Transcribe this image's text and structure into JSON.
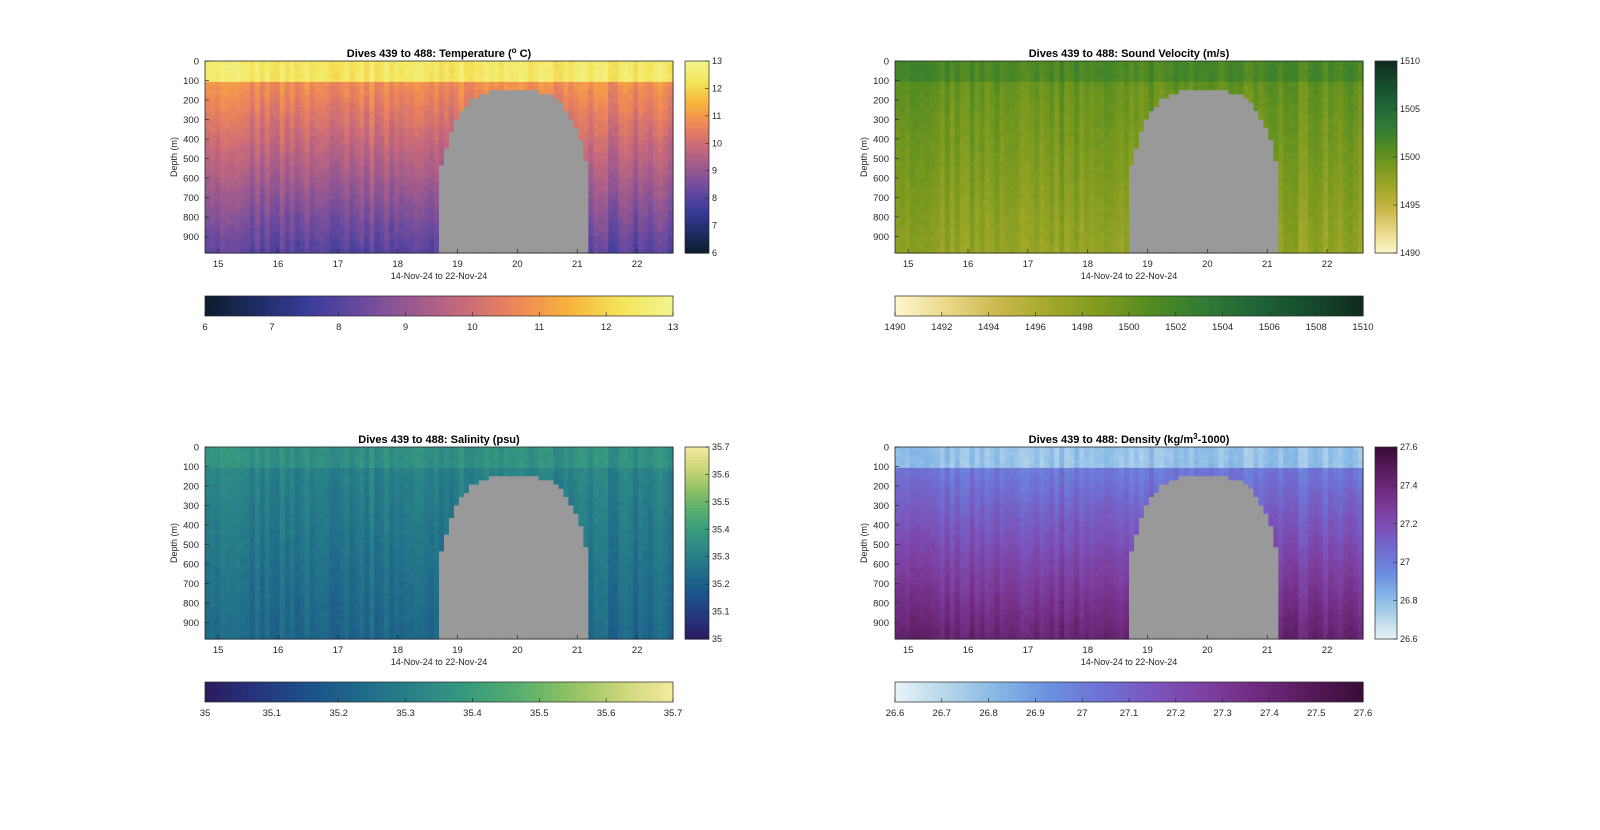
{
  "figure": {
    "xlabel_common": "14-Nov-24 to 22-Nov-24",
    "ylabel_common": "Depth (m)"
  },
  "chart_data": [
    {
      "id": "temperature",
      "type": "heatmap",
      "title": "Dives 439 to 488: Temperature (° C)",
      "title_parts": [
        "Dives 439 to 488: Temperature (",
        "o",
        " C)"
      ],
      "xlabel": "14-Nov-24 to 22-Nov-24",
      "ylabel": "Depth (m)",
      "x_ticks": [
        "15",
        "16",
        "17",
        "18",
        "19",
        "20",
        "21",
        "22"
      ],
      "x_tick_values": [
        15,
        16,
        17,
        18,
        19,
        20,
        21,
        22
      ],
      "xlim": [
        14.78,
        22.6
      ],
      "y_ticks": [
        "0",
        "100",
        "200",
        "300",
        "400",
        "500",
        "600",
        "700",
        "800",
        "900"
      ],
      "ylim": [
        0,
        985
      ],
      "y_reversed": true,
      "value_range": [
        6,
        13
      ],
      "colorbar_side": {
        "ticks": [
          "6",
          "7",
          "8",
          "9",
          "10",
          "11",
          "12",
          "13"
        ]
      },
      "colorbar_bottom": {
        "ticks": [
          "6",
          "7",
          "8",
          "9",
          "10",
          "11",
          "12",
          "13"
        ]
      },
      "colormap": [
        "#0b1c2c",
        "#1f2d66",
        "#3a3c9a",
        "#6b4a9f",
        "#9c5a8f",
        "#c96a7a",
        "#ee8758",
        "#f7b33c",
        "#f4e45a",
        "#f2f58f"
      ],
      "surface_value": 12.4,
      "bottom_value": 8.0,
      "thermocline_depth": 160,
      "gap": {
        "start_day": 18.7,
        "end_day": 21.2,
        "top_depth": 155
      },
      "nodata_color": "#999999"
    },
    {
      "id": "sound-velocity",
      "type": "heatmap",
      "title": "Dives 439 to 488: Sound Velocity (m/s)",
      "title_parts": [
        "Dives 439 to 488: Sound Velocity (m/s)"
      ],
      "xlabel": "14-Nov-24 to 22-Nov-24",
      "ylabel": "Depth (m)",
      "x_ticks": [
        "15",
        "16",
        "17",
        "18",
        "19",
        "20",
        "21",
        "22"
      ],
      "x_tick_values": [
        15,
        16,
        17,
        18,
        19,
        20,
        21,
        22
      ],
      "xlim": [
        14.78,
        22.6
      ],
      "y_ticks": [
        "0",
        "100",
        "200",
        "300",
        "400",
        "500",
        "600",
        "700",
        "800",
        "900"
      ],
      "ylim": [
        0,
        985
      ],
      "y_reversed": true,
      "value_range": [
        1490,
        1510
      ],
      "colorbar_side": {
        "ticks": [
          "1490",
          "1495",
          "1500",
          "1505",
          "1510"
        ]
      },
      "colorbar_bottom": {
        "ticks": [
          "1490",
          "1492",
          "1494",
          "1496",
          "1498",
          "1500",
          "1502",
          "1504",
          "1506",
          "1508",
          "1510"
        ]
      },
      "colormap": [
        "#fdf7cc",
        "#ead88a",
        "#c9b84b",
        "#a2a82a",
        "#7c9a1e",
        "#4f8a22",
        "#2f7a36",
        "#1f6337",
        "#164a2d",
        "#0f2a1c"
      ],
      "surface_value": 1501.5,
      "bottom_value": 1497.5,
      "thermocline_depth": 160,
      "gap": {
        "start_day": 18.7,
        "end_day": 21.2,
        "top_depth": 155
      },
      "nodata_color": "#999999"
    },
    {
      "id": "salinity",
      "type": "heatmap",
      "title": "Dives 439 to 488: Salinity (psu)",
      "title_parts": [
        "Dives 439 to 488: Salinity (psu)"
      ],
      "xlabel": "14-Nov-24 to 22-Nov-24",
      "ylabel": "Depth (m)",
      "x_ticks": [
        "15",
        "16",
        "17",
        "18",
        "19",
        "20",
        "21",
        "22"
      ],
      "x_tick_values": [
        15,
        16,
        17,
        18,
        19,
        20,
        21,
        22
      ],
      "xlim": [
        14.78,
        22.6
      ],
      "y_ticks": [
        "0",
        "100",
        "200",
        "300",
        "400",
        "500",
        "600",
        "700",
        "800",
        "900"
      ],
      "ylim": [
        0,
        985
      ],
      "y_reversed": true,
      "value_range": [
        35,
        35.7
      ],
      "colorbar_side": {
        "ticks": [
          "35",
          "35.1",
          "35.2",
          "35.3",
          "35.4",
          "35.5",
          "35.6",
          "35.7"
        ]
      },
      "colorbar_bottom": {
        "ticks": [
          "35",
          "35.1",
          "35.2",
          "35.3",
          "35.4",
          "35.5",
          "35.6",
          "35.7"
        ]
      },
      "colormap": [
        "#2a1a5e",
        "#26357e",
        "#1b5189",
        "#1f6a8a",
        "#2a8288",
        "#36997f",
        "#55ae6f",
        "#8fc163",
        "#cbd57a",
        "#f6eaa0"
      ],
      "surface_value": 35.36,
      "bottom_value": 35.22,
      "thermocline_depth": 160,
      "gap": {
        "start_day": 18.7,
        "end_day": 21.2,
        "top_depth": 155
      },
      "nodata_color": "#999999"
    },
    {
      "id": "density",
      "type": "heatmap",
      "title": "Dives 439 to 488: Density (kg/m³-1000)",
      "title_parts": [
        "Dives 439 to 488: Density (kg/m",
        "3",
        "-1000)"
      ],
      "xlabel": "14-Nov-24 to 22-Nov-24",
      "ylabel": "Depth (m)",
      "x_ticks": [
        "15",
        "16",
        "17",
        "18",
        "19",
        "20",
        "21",
        "22"
      ],
      "x_tick_values": [
        15,
        16,
        17,
        18,
        19,
        20,
        21,
        22
      ],
      "xlim": [
        14.78,
        22.6
      ],
      "y_ticks": [
        "0",
        "100",
        "200",
        "300",
        "400",
        "500",
        "600",
        "700",
        "800",
        "900"
      ],
      "ylim": [
        0,
        985
      ],
      "y_reversed": true,
      "value_range": [
        26.6,
        27.6
      ],
      "colorbar_side": {
        "ticks": [
          "26.6",
          "26.8",
          "27",
          "27.2",
          "27.4",
          "27.6"
        ]
      },
      "colorbar_bottom": {
        "ticks": [
          "26.6",
          "26.7",
          "26.8",
          "26.9",
          "27",
          "27.1",
          "27.2",
          "27.3",
          "27.4",
          "27.5",
          "27.6"
        ]
      },
      "colormap": [
        "#e9f3f6",
        "#b5d6ea",
        "#85b6e6",
        "#6b8fe0",
        "#6f70d3",
        "#7a55bd",
        "#7d3f9f",
        "#6f2a7e",
        "#561a5a",
        "#3a0c36"
      ],
      "surface_value": 26.78,
      "bottom_value": 27.42,
      "thermocline_depth": 160,
      "gap": {
        "start_day": 18.7,
        "end_day": 21.2,
        "top_depth": 155
      },
      "nodata_color": "#999999"
    }
  ]
}
